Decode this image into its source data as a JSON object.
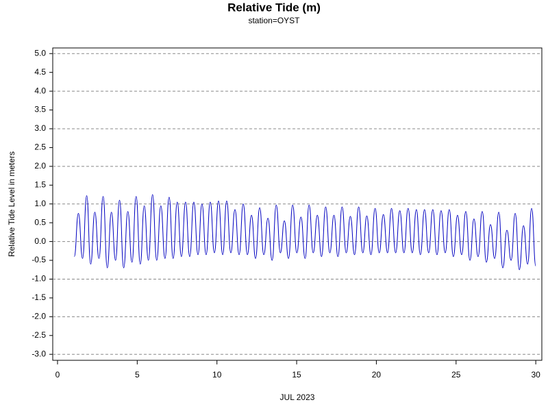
{
  "chart_data": {
    "type": "line",
    "title": "Relative Tide (m)",
    "subtitle": "station=OYST",
    "xlabel": "JUL 2023",
    "ylabel": "Relative Tide Level in meters",
    "xlim": [
      -0.3,
      30.38
    ],
    "ylim": [
      -3.16,
      5.15
    ],
    "xticks": [
      0,
      5,
      10,
      15,
      20,
      25,
      30
    ],
    "yticks": [
      {
        "value": 5,
        "label": "5.0"
      },
      {
        "value": 4.5,
        "label": "4.5"
      },
      {
        "value": 4,
        "label": "4.0"
      },
      {
        "value": 3.5,
        "label": "3.5"
      },
      {
        "value": 3,
        "label": "3.0"
      },
      {
        "value": 2.5,
        "label": "2.5"
      },
      {
        "value": 2,
        "label": "2.0"
      },
      {
        "value": 1.5,
        "label": "1.5"
      },
      {
        "value": 1,
        "label": "1.0"
      },
      {
        "value": 0.5,
        "label": "0.5"
      },
      {
        "value": 0,
        "label": "0.0"
      },
      {
        "value": -0.5,
        "label": "-0.5"
      },
      {
        "value": -1,
        "label": "-1.0"
      },
      {
        "value": -1.5,
        "label": "-1.5"
      },
      {
        "value": -2,
        "label": "-2.0"
      },
      {
        "value": -2.5,
        "label": "-2.5"
      },
      {
        "value": -3,
        "label": "-3.0"
      }
    ],
    "grid": true,
    "x": [
      1.05,
      1.31,
      1.57,
      1.83,
      2.08,
      2.34,
      2.6,
      2.86,
      3.12,
      3.38,
      3.64,
      3.89,
      4.15,
      4.41,
      4.67,
      4.93,
      5.19,
      5.44,
      5.7,
      5.96,
      6.22,
      6.48,
      6.74,
      7.0,
      7.25,
      7.51,
      7.77,
      8.03,
      8.29,
      8.55,
      8.81,
      9.06,
      9.32,
      9.58,
      9.84,
      10.1,
      10.36,
      10.61,
      10.87,
      11.13,
      11.39,
      11.65,
      11.91,
      12.17,
      12.42,
      12.68,
      12.94,
      13.2,
      13.46,
      13.72,
      13.98,
      14.23,
      14.49,
      14.75,
      15.01,
      15.27,
      15.53,
      15.78,
      16.04,
      16.3,
      16.56,
      16.82,
      17.08,
      17.34,
      17.59,
      17.85,
      18.11,
      18.37,
      18.63,
      18.89,
      19.15,
      19.4,
      19.66,
      19.92,
      20.18,
      20.44,
      20.7,
      20.95,
      21.21,
      21.47,
      21.73,
      21.99,
      22.25,
      22.51,
      22.76,
      23.02,
      23.28,
      23.54,
      23.8,
      24.06,
      24.32,
      24.57,
      24.83,
      25.09,
      25.35,
      25.61,
      25.87,
      26.12,
      26.38,
      26.64,
      26.9,
      27.16,
      27.42,
      27.68,
      27.93,
      28.19,
      28.45,
      28.71,
      28.97,
      29.23,
      29.49,
      29.74,
      30.0
    ],
    "series": [
      {
        "color": "#0000c0",
        "values": [
          -0.4,
          0.75,
          -0.45,
          1.22,
          -0.6,
          0.78,
          -0.45,
          1.2,
          -0.7,
          0.78,
          -0.5,
          1.1,
          -0.7,
          0.8,
          -0.55,
          1.2,
          -0.6,
          0.95,
          -0.5,
          1.25,
          -0.5,
          0.95,
          -0.45,
          1.18,
          -0.45,
          1.05,
          -0.4,
          1.05,
          -0.4,
          1.05,
          -0.35,
          1.0,
          -0.35,
          1.05,
          -0.3,
          1.08,
          -0.35,
          1.08,
          -0.3,
          0.85,
          -0.35,
          1.0,
          -0.35,
          0.7,
          -0.45,
          0.9,
          -0.35,
          0.62,
          -0.5,
          0.97,
          -0.3,
          0.55,
          -0.45,
          0.97,
          -0.3,
          0.65,
          -0.45,
          0.97,
          -0.3,
          0.7,
          -0.4,
          0.92,
          -0.3,
          0.7,
          -0.4,
          0.92,
          -0.3,
          0.67,
          -0.35,
          0.92,
          -0.3,
          0.68,
          -0.35,
          0.88,
          -0.3,
          0.72,
          -0.3,
          0.88,
          -0.3,
          0.82,
          -0.3,
          0.88,
          -0.3,
          0.85,
          -0.35,
          0.85,
          -0.3,
          0.85,
          -0.35,
          0.82,
          -0.3,
          0.85,
          -0.4,
          0.7,
          -0.35,
          0.8,
          -0.5,
          0.6,
          -0.4,
          0.8,
          -0.55,
          0.45,
          -0.45,
          0.78,
          -0.7,
          0.3,
          -0.5,
          0.75,
          -0.75,
          0.42,
          -0.6,
          0.88,
          -0.65
        ]
      }
    ]
  }
}
